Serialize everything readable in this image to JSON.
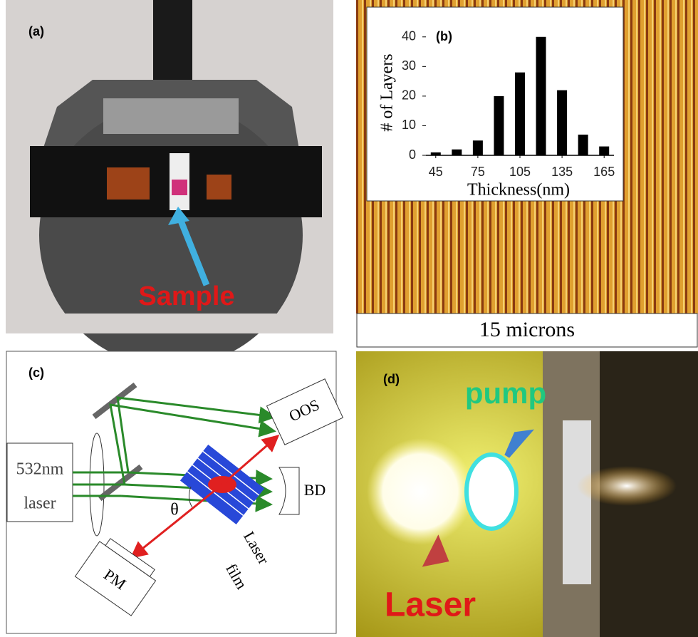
{
  "panels": {
    "a": {
      "label": "(a)",
      "annotation": "Sample"
    },
    "b": {
      "scale": "15 microns"
    },
    "c": {
      "label": "(c)",
      "source": "532nm",
      "source2": "laser",
      "oos": "OOS",
      "bd": "BD",
      "angle": "θ",
      "pm": "PM",
      "film": "Laser",
      "film2": "film"
    },
    "d": {
      "label": "(d)",
      "pump": "pump",
      "laser": "Laser"
    }
  },
  "chart_data": {
    "type": "bar",
    "label": "(b)",
    "xlabel": "Thickness(nm)",
    "ylabel": "# of Layers",
    "x": [
      45,
      60,
      75,
      90,
      105,
      120,
      135,
      150,
      165
    ],
    "values": [
      1,
      2,
      5,
      20,
      28,
      40,
      22,
      7,
      3
    ],
    "color": "#000000",
    "xlim": [
      38,
      172
    ],
    "ylim": [
      0,
      45
    ],
    "xticks": [
      45,
      75,
      105,
      135,
      165
    ],
    "yticks": [
      0,
      10,
      20,
      30,
      40
    ]
  }
}
